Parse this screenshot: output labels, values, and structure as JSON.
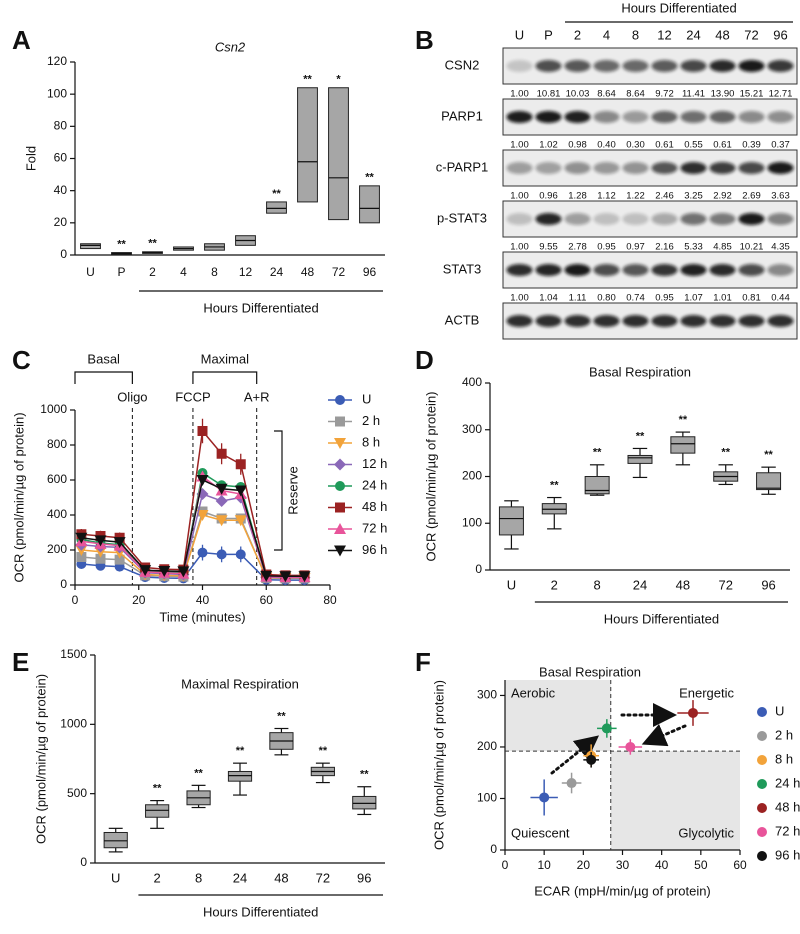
{
  "chart_data": [
    {
      "panel": "A",
      "type": "floating_bar",
      "title": "Csn2",
      "ylabel": "Fold",
      "xlabel": "Hours Differentiated",
      "categories": [
        "U",
        "P",
        "2",
        "4",
        "8",
        "12",
        "24",
        "48",
        "72",
        "96"
      ],
      "low": [
        4,
        0.5,
        1,
        3,
        3,
        6,
        26,
        33,
        22,
        20
      ],
      "mid": [
        6,
        1,
        1.5,
        4,
        5,
        9,
        29,
        58,
        48,
        29
      ],
      "high": [
        7,
        1.5,
        2,
        5,
        7,
        12,
        33,
        104,
        104,
        43
      ],
      "significance": [
        null,
        "**",
        "**",
        null,
        null,
        null,
        "**",
        "**",
        "*",
        "**"
      ],
      "ylim": [
        0,
        120
      ],
      "yticks": [
        0,
        20,
        40,
        60,
        80,
        100,
        120
      ],
      "color": "#a6a6a6"
    },
    {
      "panel": "B",
      "type": "blot",
      "xlabel": "Hours Differentiated",
      "lanes": [
        "U",
        "P",
        "2",
        "4",
        "8",
        "12",
        "24",
        "48",
        "72",
        "96"
      ],
      "rows": [
        {
          "name": "CSN2",
          "values": [
            1,
            10.81,
            10.03,
            8.64,
            8.64,
            9.72,
            11.41,
            13.9,
            15.21,
            12.71
          ],
          "value_labels": [
            "1.00",
            "10.81",
            "10.03",
            "8.64",
            "8.64",
            "9.72",
            "11.41",
            "13.90",
            "15.21",
            "12.71"
          ]
        },
        {
          "name": "PARP1",
          "values": [
            1,
            1.02,
            0.98,
            0.4,
            0.3,
            0.61,
            0.55,
            0.61,
            0.39,
            0.37
          ],
          "value_labels": [
            "1.00",
            "1.02",
            "0.98",
            "0.40",
            "0.30",
            "0.61",
            "0.55",
            "0.61",
            "0.39",
            "0.37"
          ]
        },
        {
          "name": "c-PARP1",
          "values": [
            1,
            0.96,
            1.28,
            1.12,
            1.22,
            2.46,
            3.25,
            2.92,
            2.69,
            3.63
          ],
          "value_labels": [
            "1.00",
            "0.96",
            "1.28",
            "1.12",
            "1.22",
            "2.46",
            "3.25",
            "2.92",
            "2.69",
            "3.63"
          ]
        },
        {
          "name": "p-STAT3",
          "values": [
            1,
            9.55,
            2.78,
            0.95,
            0.97,
            2.16,
            5.33,
            4.85,
            10.21,
            4.35
          ],
          "value_labels": [
            "1.00",
            "9.55",
            "2.78",
            "0.95",
            "0.97",
            "2.16",
            "5.33",
            "4.85",
            "10.21",
            "4.35"
          ]
        },
        {
          "name": "STAT3",
          "values": [
            1,
            1.04,
            1.11,
            0.8,
            0.74,
            0.95,
            1.07,
            1.01,
            0.81,
            0.44
          ],
          "value_labels": [
            "1.00",
            "1.04",
            "1.11",
            "0.80",
            "0.74",
            "0.95",
            "1.07",
            "1.01",
            "0.81",
            "0.44"
          ]
        },
        {
          "name": "ACTB"
        }
      ]
    },
    {
      "panel": "C",
      "type": "line",
      "xlabel": "Time (minutes)",
      "ylabel": "OCR (pmol/min/µg of protein)",
      "x": [
        2,
        8,
        14,
        22,
        28,
        34,
        40,
        46,
        52,
        60,
        66,
        72
      ],
      "xlim": [
        0,
        80
      ],
      "xticks": [
        0,
        20,
        40,
        60,
        80
      ],
      "ylim": [
        0,
        1000
      ],
      "yticks": [
        0,
        200,
        400,
        600,
        800,
        1000
      ],
      "phases": [
        {
          "label": "Basal",
          "range": [
            0,
            18
          ]
        },
        {
          "label": "Maximal",
          "range": [
            37,
            57
          ]
        }
      ],
      "injections": [
        {
          "label": "Oligo",
          "x": 18
        },
        {
          "label": "FCCP",
          "x": 37
        },
        {
          "label": "A+R",
          "x": 57
        }
      ],
      "reserve": {
        "label": "Reserve",
        "range": [
          200,
          880
        ]
      },
      "series": [
        {
          "name": "U",
          "color": "#3b5cb5",
          "marker": "circle",
          "values": [
            120,
            110,
            105,
            45,
            40,
            38,
            185,
            175,
            175,
            30,
            28,
            28
          ],
          "errors": [
            20,
            18,
            18,
            8,
            8,
            8,
            45,
            45,
            45,
            5,
            5,
            5
          ]
        },
        {
          "name": "2 h",
          "color": "#9a9a9a",
          "marker": "square",
          "values": [
            160,
            150,
            145,
            55,
            50,
            48,
            420,
            380,
            380,
            40,
            38,
            38
          ]
        },
        {
          "name": "8 h",
          "color": "#f2a33a",
          "marker": "triangle-down",
          "values": [
            200,
            190,
            185,
            60,
            55,
            52,
            400,
            370,
            370,
            42,
            40,
            40
          ]
        },
        {
          "name": "12 h",
          "color": "#8a68b8",
          "marker": "diamond",
          "values": [
            230,
            220,
            215,
            70,
            65,
            60,
            520,
            480,
            500,
            45,
            42,
            42
          ]
        },
        {
          "name": "24 h",
          "color": "#1f9a5a",
          "marker": "circle",
          "values": [
            260,
            240,
            230,
            80,
            75,
            70,
            640,
            570,
            560,
            50,
            48,
            48
          ]
        },
        {
          "name": "48 h",
          "color": "#9b2222",
          "marker": "square",
          "values": [
            290,
            280,
            270,
            100,
            90,
            88,
            880,
            750,
            690,
            60,
            55,
            55
          ],
          "errors": [
            30,
            30,
            30,
            15,
            15,
            15,
            70,
            60,
            60,
            10,
            10,
            10
          ]
        },
        {
          "name": "72 h",
          "color": "#e8549a",
          "marker": "triangle-up",
          "values": [
            250,
            235,
            225,
            75,
            70,
            65,
            620,
            540,
            520,
            48,
            45,
            45
          ]
        },
        {
          "name": "96 h",
          "color": "#111111",
          "marker": "triangle-down",
          "values": [
            270,
            255,
            245,
            85,
            80,
            78,
            600,
            550,
            540,
            52,
            50,
            50
          ]
        }
      ]
    },
    {
      "panel": "D",
      "type": "box",
      "title": "Basal Respiration",
      "ylabel": "OCR (pmol/min/µg of protein)",
      "xlabel": "Hours Differentiated",
      "categories": [
        "U",
        "2",
        "8",
        "24",
        "48",
        "72",
        "96"
      ],
      "boxes": [
        {
          "min": 45,
          "q1": 75,
          "median": 110,
          "q3": 135,
          "max": 148
        },
        {
          "min": 88,
          "q1": 120,
          "median": 130,
          "q3": 142,
          "max": 155
        },
        {
          "min": 160,
          "q1": 163,
          "median": 170,
          "q3": 200,
          "max": 225
        },
        {
          "min": 198,
          "q1": 228,
          "median": 240,
          "q3": 245,
          "max": 260
        },
        {
          "min": 225,
          "q1": 250,
          "median": 270,
          "q3": 285,
          "max": 295
        },
        {
          "min": 183,
          "q1": 190,
          "median": 200,
          "q3": 210,
          "max": 225
        },
        {
          "min": 162,
          "q1": 172,
          "median": 175,
          "q3": 208,
          "max": 220
        }
      ],
      "significance": [
        null,
        "**",
        "**",
        "**",
        "**",
        "**",
        "**"
      ],
      "ylim": [
        0,
        400
      ],
      "yticks": [
        0,
        100,
        200,
        300,
        400
      ],
      "color": "#a6a6a6"
    },
    {
      "panel": "E",
      "type": "box",
      "title": "Maximal Respiration",
      "ylabel": "OCR (pmol/min/µg of protein)",
      "xlabel": "Hours Differentiated",
      "categories": [
        "U",
        "2",
        "8",
        "24",
        "48",
        "72",
        "96"
      ],
      "boxes": [
        {
          "min": 80,
          "q1": 110,
          "median": 160,
          "q3": 220,
          "max": 250
        },
        {
          "min": 250,
          "q1": 330,
          "median": 380,
          "q3": 420,
          "max": 450
        },
        {
          "min": 400,
          "q1": 420,
          "median": 470,
          "q3": 520,
          "max": 560
        },
        {
          "min": 490,
          "q1": 590,
          "median": 630,
          "q3": 660,
          "max": 720
        },
        {
          "min": 780,
          "q1": 820,
          "median": 880,
          "q3": 940,
          "max": 970
        },
        {
          "min": 580,
          "q1": 630,
          "median": 660,
          "q3": 690,
          "max": 720
        },
        {
          "min": 350,
          "q1": 390,
          "median": 430,
          "q3": 480,
          "max": 550
        }
      ],
      "significance": [
        null,
        "**",
        "**",
        "**",
        "**",
        "**",
        "**"
      ],
      "ylim": [
        0,
        1500
      ],
      "yticks": [
        0,
        500,
        1000,
        1500
      ],
      "color": "#a6a6a6"
    },
    {
      "panel": "F",
      "type": "scatter",
      "title": "Basal Respiration",
      "xlabel": "ECAR (mpH/min/µg of protein)",
      "ylabel": "OCR (pmol/min/µg of protein)",
      "xlim": [
        0,
        60
      ],
      "xticks": [
        0,
        10,
        20,
        30,
        40,
        50,
        60
      ],
      "ylim": [
        0,
        330
      ],
      "yticks": [
        0,
        100,
        200,
        300
      ],
      "reference_lines": {
        "x": 27,
        "y": 192
      },
      "quadrant_labels": {
        "top_left": "Aerobic",
        "top_right": "Energetic",
        "bottom_left": "Quiescent",
        "bottom_right": "Glycolytic"
      },
      "series": [
        {
          "name": "U",
          "color": "#3b5cb5",
          "x": [
            10
          ],
          "values": [
            102
          ],
          "xerr": [
            3.5
          ],
          "yerr": [
            35
          ]
        },
        {
          "name": "2 h",
          "color": "#9a9a9a",
          "x": [
            17
          ],
          "values": [
            130
          ],
          "xerr": [
            2.5
          ],
          "yerr": [
            20
          ]
        },
        {
          "name": "8 h",
          "color": "#f2a33a",
          "x": [
            22
          ],
          "values": [
            183
          ],
          "xerr": [
            2
          ],
          "yerr": [
            22
          ]
        },
        {
          "name": "24 h",
          "color": "#1f9a5a",
          "x": [
            26
          ],
          "values": [
            236
          ],
          "xerr": [
            2.5
          ],
          "yerr": [
            18
          ]
        },
        {
          "name": "48 h",
          "color": "#9b2222",
          "x": [
            48
          ],
          "values": [
            266
          ],
          "xerr": [
            4
          ],
          "yerr": [
            25
          ]
        },
        {
          "name": "72 h",
          "color": "#e8549a",
          "x": [
            32
          ],
          "values": [
            200
          ],
          "xerr": [
            3
          ],
          "yerr": [
            15
          ]
        },
        {
          "name": "96 h",
          "color": "#111111",
          "x": [
            22
          ],
          "values": [
            175
          ],
          "xerr": [
            2
          ],
          "yerr": [
            15
          ]
        }
      ]
    }
  ]
}
